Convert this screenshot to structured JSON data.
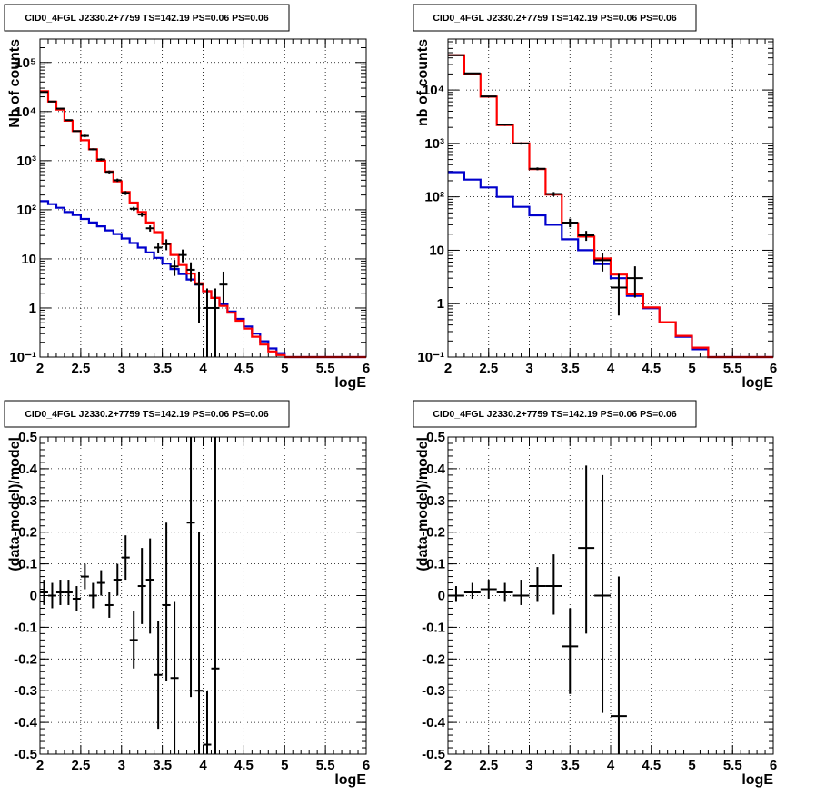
{
  "colors": {
    "data": "#000000",
    "total_model": "#ff0000",
    "component_model": "#0000cc",
    "grid": "#000000"
  },
  "chart_data": [
    {
      "type": "line",
      "title": "CID0_4FGL J2330.2+7759 TS=142.19 PS=0.06 PS=0.06",
      "xlabel": "logE",
      "ylabel": "Nb of counts",
      "xlim": [
        2,
        6
      ],
      "ylim": [
        0.1,
        300000
      ],
      "yscale": "log",
      "grid": true,
      "xticks": [
        "2",
        "2.5",
        "3",
        "3.5",
        "4",
        "4.5",
        "5",
        "5.5",
        "6"
      ],
      "yticks": [
        {
          "v": 0.1,
          "label": "10⁻¹"
        },
        {
          "v": 1,
          "label": "1"
        },
        {
          "v": 10,
          "label": "10"
        },
        {
          "v": 100,
          "label": "10²"
        },
        {
          "v": 1000,
          "label": "10³"
        },
        {
          "v": 10000,
          "label": "10⁴"
        },
        {
          "v": 100000,
          "label": "10⁵"
        }
      ],
      "bin_edges": [
        2.0,
        2.1,
        2.2,
        2.3,
        2.4,
        2.5,
        2.6,
        2.7,
        2.8,
        2.9,
        3.0,
        3.1,
        3.2,
        3.3,
        3.4,
        3.5,
        3.6,
        3.7,
        3.8,
        3.9,
        4.0,
        4.1,
        4.2,
        4.3,
        4.4,
        4.5,
        4.6,
        4.7,
        4.8,
        4.9,
        5.0,
        5.1,
        5.2,
        5.3,
        5.4,
        5.5,
        5.6,
        5.7,
        5.8,
        5.9,
        6.0
      ],
      "series": [
        {
          "role": "total_model",
          "values": [
            26000,
            16000,
            11000,
            6500,
            4000,
            2600,
            1700,
            1000,
            600,
            380,
            230,
            140,
            90,
            55,
            35,
            20,
            12,
            7.5,
            5.0,
            3.2,
            2.2,
            1.6,
            1.1,
            0.8,
            0.55,
            0.38,
            0.26,
            0.18,
            0.13,
            0.11,
            0.1,
            0.1,
            0.1,
            0.1,
            0.1,
            0.1,
            0.1,
            0.1,
            0.1,
            0.1
          ]
        },
        {
          "role": "component_model",
          "values": [
            150,
            130,
            110,
            90,
            78,
            65,
            55,
            46,
            38,
            32,
            26,
            21,
            17,
            13.5,
            10.5,
            8,
            6.2,
            4.9,
            3.8,
            3.0,
            2.2,
            1.6,
            1.2,
            0.85,
            0.6,
            0.42,
            0.3,
            0.21,
            0.15,
            0.12,
            0.1,
            0.1,
            0.1,
            0.1,
            0.1,
            0.1,
            0.1,
            0.1,
            0.1,
            0.1
          ]
        }
      ],
      "points": [
        {
          "x": 2.05,
          "y": 25000,
          "ylo": 24800,
          "yhi": 25200
        },
        {
          "x": 2.15,
          "y": 16000,
          "ylo": 15800,
          "yhi": 16200
        },
        {
          "x": 2.25,
          "y": 11500,
          "ylo": 11300,
          "yhi": 11700
        },
        {
          "x": 2.35,
          "y": 6700,
          "ylo": 6550,
          "yhi": 6850
        },
        {
          "x": 2.45,
          "y": 4000,
          "ylo": 3880,
          "yhi": 4120
        },
        {
          "x": 2.55,
          "y": 3200,
          "ylo": 3000,
          "yhi": 3400
        },
        {
          "x": 2.65,
          "y": 1700,
          "ylo": 1620,
          "yhi": 1780
        },
        {
          "x": 2.75,
          "y": 1060,
          "ylo": 1000,
          "yhi": 1120
        },
        {
          "x": 2.85,
          "y": 590,
          "ylo": 550,
          "yhi": 630
        },
        {
          "x": 2.95,
          "y": 400,
          "ylo": 370,
          "yhi": 430
        },
        {
          "x": 3.05,
          "y": 220,
          "ylo": 200,
          "yhi": 240
        },
        {
          "x": 3.15,
          "y": 105,
          "ylo": 95,
          "yhi": 115
        },
        {
          "x": 3.25,
          "y": 80,
          "ylo": 72,
          "yhi": 88
        },
        {
          "x": 3.35,
          "y": 42,
          "ylo": 36,
          "yhi": 48
        },
        {
          "x": 3.45,
          "y": 17,
          "ylo": 13,
          "yhi": 21
        },
        {
          "x": 3.55,
          "y": 20,
          "ylo": 15,
          "yhi": 25
        },
        {
          "x": 3.65,
          "y": 7,
          "ylo": 4.5,
          "yhi": 9.5
        },
        {
          "x": 3.75,
          "y": 12,
          "ylo": 8.5,
          "yhi": 15.5
        },
        {
          "x": 3.85,
          "y": 6,
          "ylo": 3.5,
          "yhi": 8.5
        },
        {
          "x": 3.95,
          "y": 3,
          "ylo": 0.5,
          "yhi": 5.5
        },
        {
          "x": 4.05,
          "y": 1,
          "ylo": 0.1,
          "yhi": 2.5
        },
        {
          "x": 4.15,
          "y": 1,
          "ylo": 0.1,
          "yhi": 2.5
        },
        {
          "x": 4.25,
          "y": 3,
          "ylo": 1.2,
          "yhi": 5.5
        }
      ]
    },
    {
      "type": "line",
      "title": "CID0_4FGL J2330.2+7759 TS=142.19 PS=0.06 PS=0.06",
      "xlabel": "logE",
      "ylabel": "nb of counts",
      "xlim": [
        2,
        6
      ],
      "ylim": [
        0.1,
        90000
      ],
      "yscale": "log",
      "grid": true,
      "xticks": [
        "2",
        "2.5",
        "3",
        "3.5",
        "4",
        "4.5",
        "5",
        "5.5",
        "6"
      ],
      "yticks": [
        {
          "v": 0.1,
          "label": "10⁻¹"
        },
        {
          "v": 1,
          "label": "1"
        },
        {
          "v": 10,
          "label": "10"
        },
        {
          "v": 100,
          "label": "10²"
        },
        {
          "v": 1000,
          "label": "10³"
        },
        {
          "v": 10000,
          "label": "10⁴"
        }
      ],
      "bin_edges": [
        2.0,
        2.2,
        2.4,
        2.6,
        2.8,
        3.0,
        3.2,
        3.4,
        3.6,
        3.8,
        4.0,
        4.2,
        4.4,
        4.6,
        4.8,
        5.0,
        5.2,
        5.4,
        5.6,
        5.8,
        6.0
      ],
      "series": [
        {
          "role": "total_model",
          "values": [
            45000,
            20000,
            7500,
            2200,
            1000,
            330,
            110,
            32,
            18,
            7,
            3.5,
            1.5,
            0.85,
            0.45,
            0.25,
            0.15,
            0.1,
            0.1,
            0.1,
            0.1
          ]
        },
        {
          "role": "component_model",
          "values": [
            290,
            210,
            150,
            100,
            65,
            45,
            30,
            16,
            10,
            5.5,
            3.0,
            1.4,
            0.82,
            0.45,
            0.24,
            0.14,
            0.1,
            0.1,
            0.1,
            0.1
          ]
        }
      ],
      "points": [
        {
          "x": 2.1,
          "y": 45000,
          "ylo": 44700,
          "yhi": 45300
        },
        {
          "x": 2.3,
          "y": 20500,
          "ylo": 20300,
          "yhi": 20700
        },
        {
          "x": 2.5,
          "y": 7600,
          "ylo": 7450,
          "yhi": 7750
        },
        {
          "x": 2.7,
          "y": 2250,
          "ylo": 2150,
          "yhi": 2350
        },
        {
          "x": 2.9,
          "y": 1000,
          "ylo": 950,
          "yhi": 1050
        },
        {
          "x": 3.1,
          "y": 335,
          "ylo": 315,
          "yhi": 355
        },
        {
          "x": 3.3,
          "y": 113,
          "ylo": 103,
          "yhi": 123
        },
        {
          "x": 3.5,
          "y": 33,
          "ylo": 27,
          "yhi": 39
        },
        {
          "x": 3.7,
          "y": 19,
          "ylo": 15,
          "yhi": 23
        },
        {
          "x": 3.9,
          "y": 6.5,
          "ylo": 4,
          "yhi": 9
        },
        {
          "x": 4.1,
          "y": 2,
          "ylo": 0.6,
          "yhi": 3.6
        },
        {
          "x": 4.3,
          "y": 3,
          "ylo": 1.3,
          "yhi": 5
        }
      ]
    },
    {
      "type": "scatter",
      "title": "CID0_4FGL J2330.2+7759 TS=142.19 PS=0.06 PS=0.06",
      "xlabel": "logE",
      "ylabel": "(data-model)/model",
      "xlim": [
        2,
        6
      ],
      "ylim": [
        -0.5,
        0.5
      ],
      "grid": true,
      "xticks": [
        "2",
        "2.5",
        "3",
        "3.5",
        "4",
        "4.5",
        "5",
        "5.5",
        "6"
      ],
      "yticks": [
        "-0.5",
        "-0.4",
        "-0.3",
        "-0.2",
        "-0.1",
        "0",
        "0.1",
        "0.2",
        "0.3",
        "0.4",
        "0.5"
      ],
      "xerr": 0.05,
      "points": [
        {
          "x": 2.05,
          "y": 0.01,
          "ylo": -0.03,
          "yhi": 0.05
        },
        {
          "x": 2.15,
          "y": 0.0,
          "ylo": -0.04,
          "yhi": 0.04
        },
        {
          "x": 2.25,
          "y": 0.01,
          "ylo": -0.03,
          "yhi": 0.05
        },
        {
          "x": 2.35,
          "y": 0.01,
          "ylo": -0.03,
          "yhi": 0.05
        },
        {
          "x": 2.45,
          "y": -0.01,
          "ylo": -0.05,
          "yhi": 0.03
        },
        {
          "x": 2.55,
          "y": 0.06,
          "ylo": 0.02,
          "yhi": 0.1
        },
        {
          "x": 2.65,
          "y": 0.0,
          "ylo": -0.04,
          "yhi": 0.04
        },
        {
          "x": 2.75,
          "y": 0.04,
          "ylo": 0.0,
          "yhi": 0.08
        },
        {
          "x": 2.85,
          "y": -0.03,
          "ylo": -0.07,
          "yhi": 0.01
        },
        {
          "x": 2.95,
          "y": 0.05,
          "ylo": -0.0,
          "yhi": 0.1
        },
        {
          "x": 3.05,
          "y": 0.12,
          "ylo": 0.05,
          "yhi": 0.19
        },
        {
          "x": 3.15,
          "y": -0.14,
          "ylo": -0.23,
          "yhi": -0.05
        },
        {
          "x": 3.25,
          "y": 0.03,
          "ylo": -0.09,
          "yhi": 0.15
        },
        {
          "x": 3.35,
          "y": 0.05,
          "ylo": -0.12,
          "yhi": 0.18
        },
        {
          "x": 3.45,
          "y": -0.25,
          "ylo": -0.42,
          "yhi": -0.08
        },
        {
          "x": 3.55,
          "y": -0.03,
          "ylo": -0.27,
          "yhi": 0.23
        },
        {
          "x": 3.65,
          "y": -0.26,
          "ylo": -0.5,
          "yhi": -0.02
        },
        {
          "x": 3.85,
          "y": 0.23,
          "ylo": -0.32,
          "yhi": 0.5
        },
        {
          "x": 3.95,
          "y": -0.3,
          "ylo": -0.5,
          "yhi": 0.2
        },
        {
          "x": 4.05,
          "y": -0.47,
          "ylo": -0.5,
          "yhi": -0.3
        },
        {
          "x": 4.15,
          "y": -0.23,
          "ylo": -0.5,
          "yhi": 0.5
        }
      ]
    },
    {
      "type": "scatter",
      "title": "CID0_4FGL J2330.2+7759 TS=142.19 PS=0.06 PS=0.06",
      "xlabel": "logE",
      "ylabel": "(data-model)/model",
      "xlim": [
        2,
        6
      ],
      "ylim": [
        -0.5,
        0.5
      ],
      "grid": true,
      "xticks": [
        "2",
        "2.5",
        "3",
        "3.5",
        "4",
        "4.5",
        "5",
        "5.5",
        "6"
      ],
      "yticks": [
        "-0.5",
        "-0.4",
        "-0.3",
        "-0.2",
        "-0.1",
        "0",
        "0.1",
        "0.2",
        "0.3",
        "0.4",
        "0.5"
      ],
      "xerr": 0.1,
      "points": [
        {
          "x": 2.1,
          "y": 0.0,
          "ylo": -0.02,
          "yhi": 0.03
        },
        {
          "x": 2.3,
          "y": 0.01,
          "ylo": -0.01,
          "yhi": 0.04
        },
        {
          "x": 2.5,
          "y": 0.02,
          "ylo": -0.01,
          "yhi": 0.05
        },
        {
          "x": 2.7,
          "y": 0.01,
          "ylo": -0.02,
          "yhi": 0.04
        },
        {
          "x": 2.9,
          "y": 0.0,
          "ylo": -0.03,
          "yhi": 0.05
        },
        {
          "x": 3.1,
          "y": 0.03,
          "ylo": -0.02,
          "yhi": 0.09
        },
        {
          "x": 3.3,
          "y": 0.03,
          "ylo": -0.06,
          "yhi": 0.13
        },
        {
          "x": 3.5,
          "y": -0.16,
          "ylo": -0.31,
          "yhi": -0.04
        },
        {
          "x": 3.7,
          "y": 0.15,
          "ylo": -0.12,
          "yhi": 0.41
        },
        {
          "x": 3.9,
          "y": 0.0,
          "ylo": -0.37,
          "yhi": 0.38
        },
        {
          "x": 4.1,
          "y": -0.38,
          "ylo": -0.5,
          "yhi": 0.06
        }
      ]
    }
  ]
}
